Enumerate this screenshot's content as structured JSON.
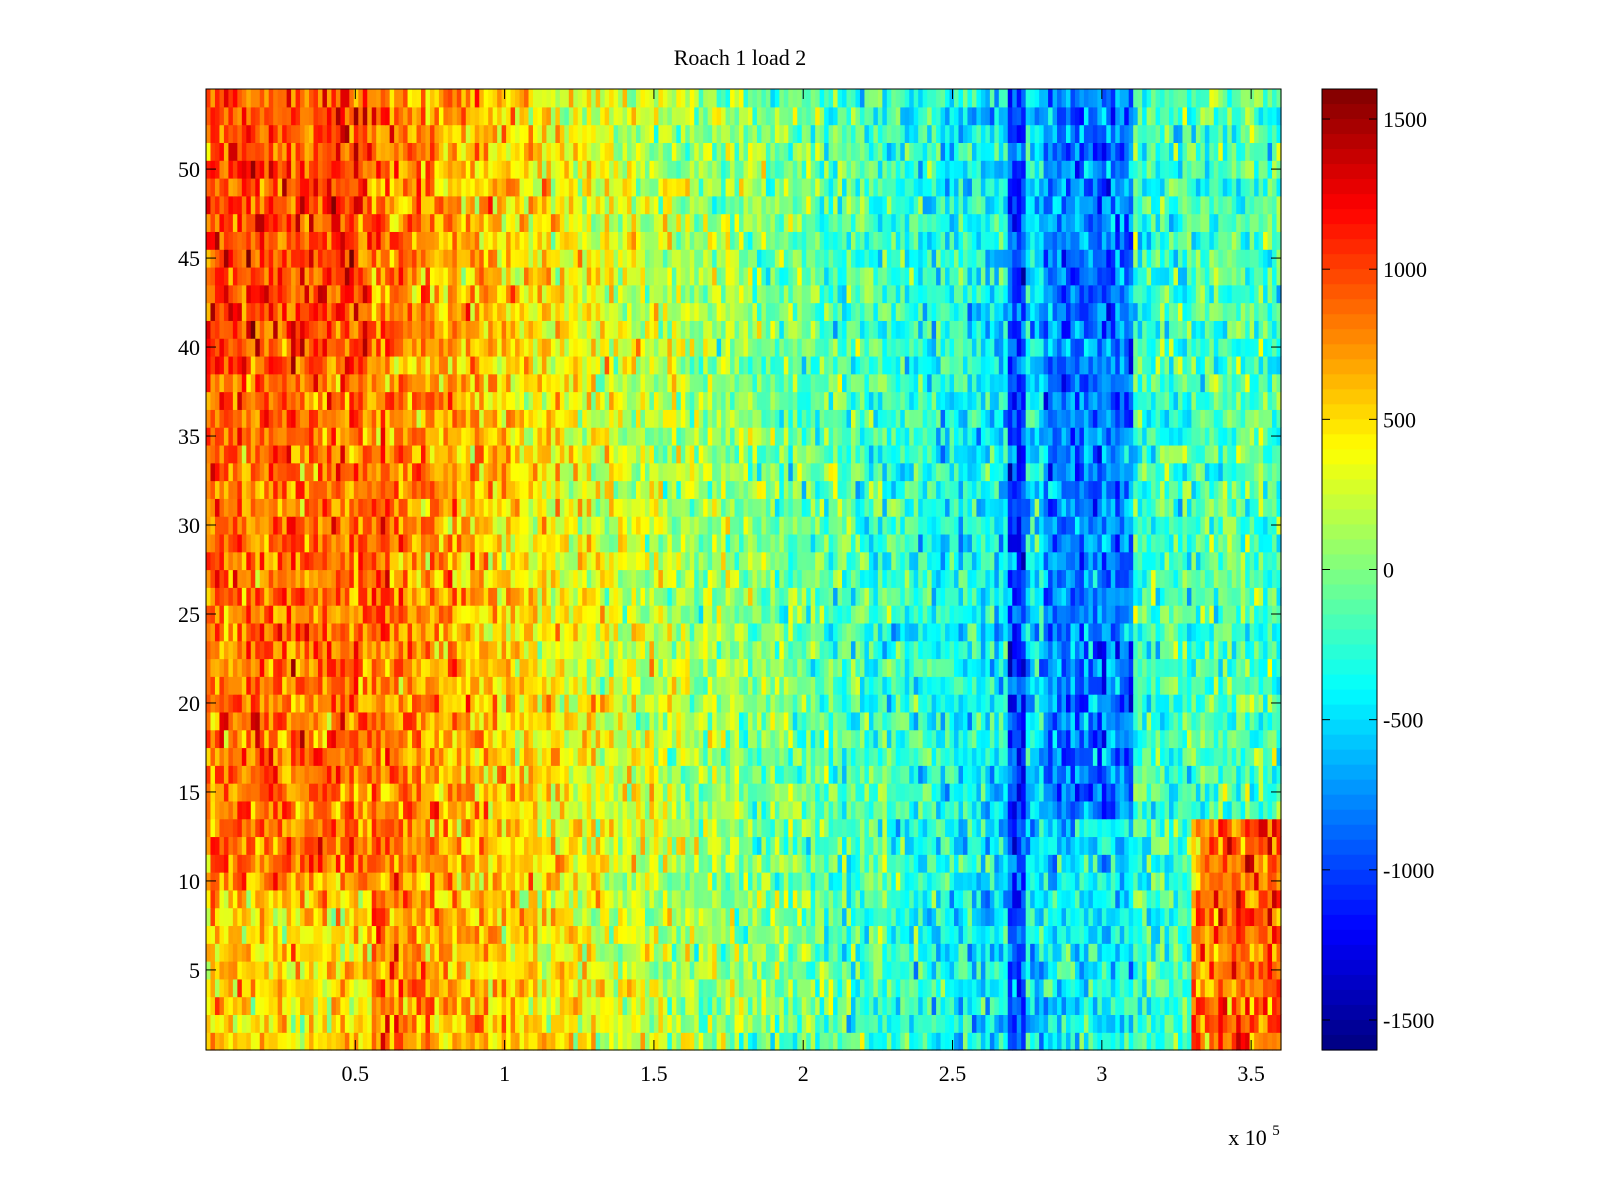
{
  "chart_data": {
    "type": "heatmap",
    "title": "Roach 1 load 2",
    "xlabel": "",
    "ylabel": "",
    "x_exponent_label": "x 10",
    "x_exponent_power": "5",
    "xlim": [
      0,
      3.6
    ],
    "ylim": [
      0.5,
      54.5
    ],
    "x_ticks": [
      0.5,
      1,
      1.5,
      2,
      2.5,
      3,
      3.5
    ],
    "x_tick_labels": [
      "0.5",
      "1",
      "1.5",
      "2",
      "2.5",
      "3",
      "3.5"
    ],
    "y_ticks": [
      5,
      10,
      15,
      20,
      25,
      30,
      35,
      40,
      45,
      50
    ],
    "y_tick_labels": [
      "5",
      "10",
      "15",
      "20",
      "25",
      "30",
      "35",
      "40",
      "45",
      "50"
    ],
    "n_rows": 54,
    "colormap": "jet",
    "clim": [
      -1600,
      1600
    ],
    "colorbar": {
      "ticks": [
        1500,
        1000,
        500,
        0,
        -500,
        -1000,
        -1500
      ],
      "tick_labels": [
        "1500",
        "1000",
        "500",
        "0",
        "-500",
        "-1000",
        "-1500"
      ]
    },
    "approx_regions": [
      {
        "description": "high values, left side",
        "x_range": [
          0,
          0.55
        ],
        "rows": [
          1,
          54
        ],
        "value_approx": 900
      },
      {
        "description": "moderate positive",
        "x_range": [
          0.55,
          1.5
        ],
        "rows": [
          1,
          54
        ],
        "value_approx": 350
      },
      {
        "description": "near zero / slightly negative",
        "x_range": [
          1.5,
          2.7
        ],
        "rows": [
          1,
          54
        ],
        "value_approx": -300
      },
      {
        "description": "strong negative stripe",
        "x_range": [
          2.68,
          2.74
        ],
        "rows": [
          1,
          54
        ],
        "value_approx": -1000
      },
      {
        "description": "negative band",
        "x_range": [
          2.8,
          3.1
        ],
        "rows": [
          14,
          54
        ],
        "value_approx": -800
      },
      {
        "description": "positive bottom-right",
        "x_range": [
          3.3,
          3.6
        ],
        "rows": [
          1,
          13
        ],
        "value_approx": 700
      }
    ]
  }
}
